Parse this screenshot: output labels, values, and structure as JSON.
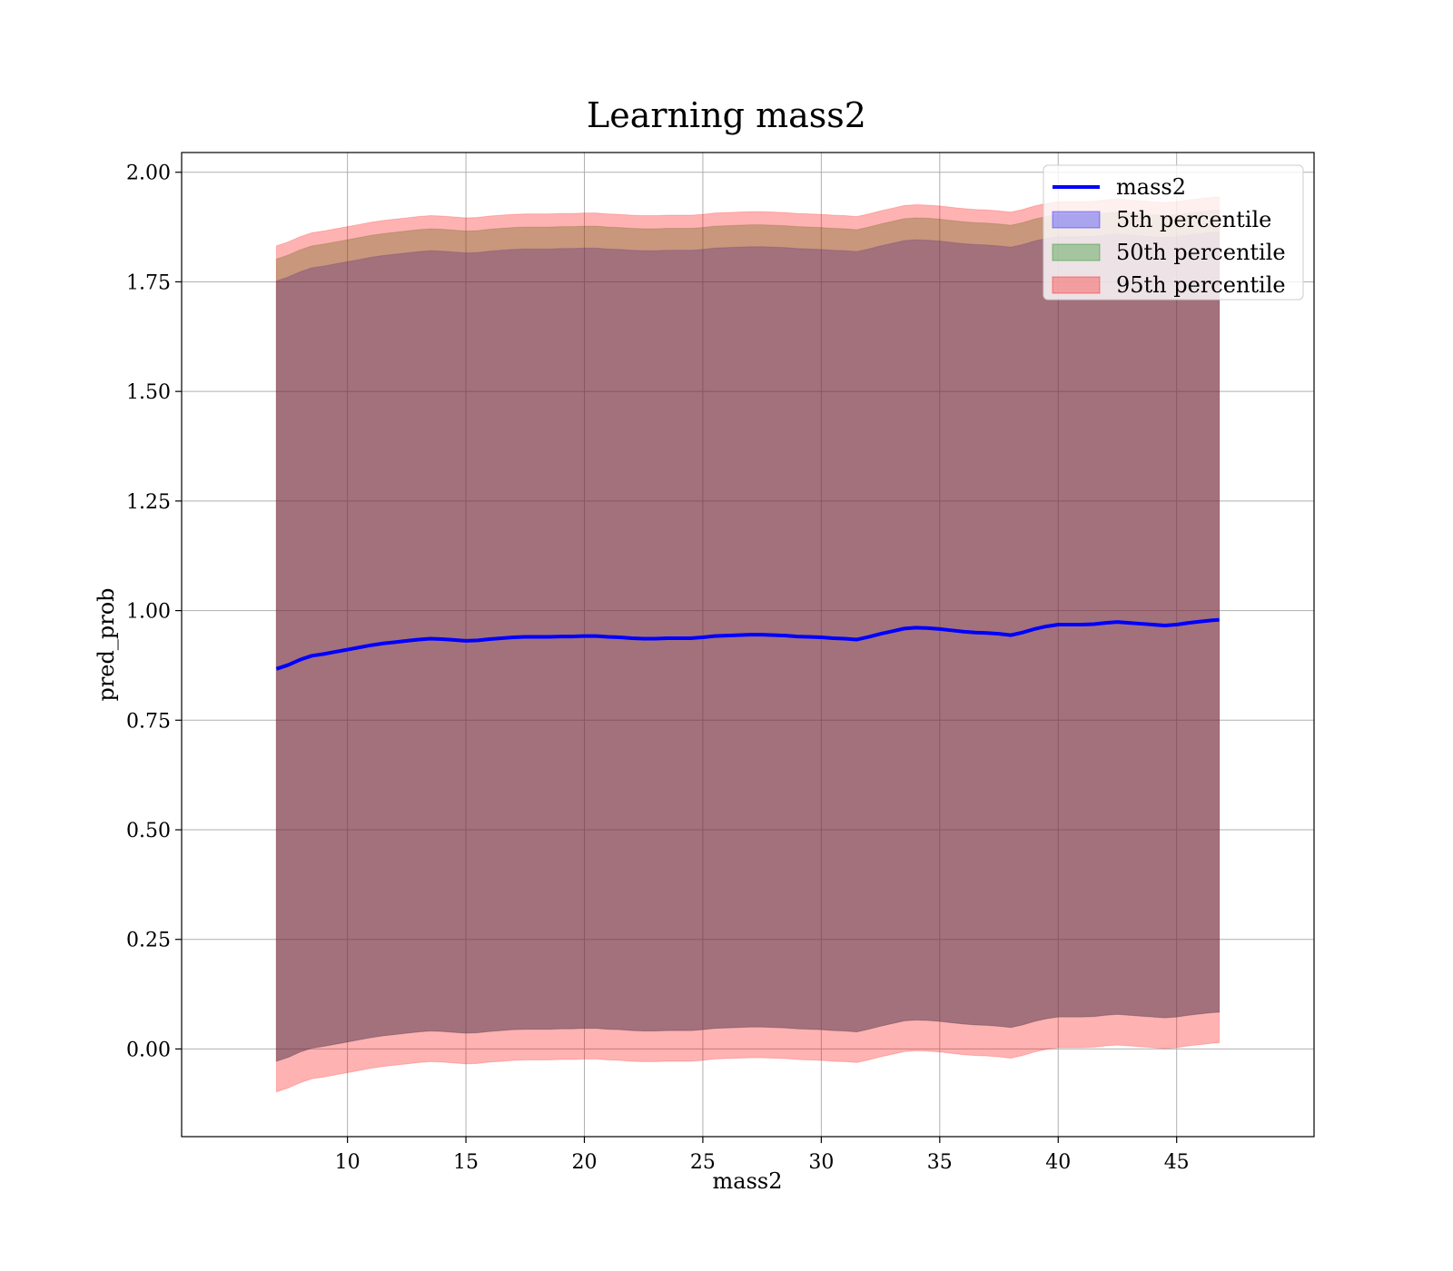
{
  "chart_data": {
    "type": "area",
    "title": "Learning mass2",
    "xlabel": "mass2",
    "ylabel": "pred_prob",
    "xlim": [
      3,
      50.8
    ],
    "ylim": [
      -0.2,
      2.045
    ],
    "xticks": [
      10,
      15,
      20,
      25,
      30,
      35,
      40,
      45
    ],
    "yticks": [
      0.0,
      0.25,
      0.5,
      0.75,
      1.0,
      1.25,
      1.5,
      1.75,
      2.0
    ],
    "ytick_labels": [
      "0.00",
      "0.25",
      "0.50",
      "0.75",
      "1.00",
      "1.25",
      "1.50",
      "1.75",
      "2.00"
    ],
    "grid": true,
    "legend_position": "top-right",
    "x": [
      7,
      7.5,
      8,
      8.5,
      9,
      9.5,
      10,
      10.5,
      11,
      11.5,
      12,
      12.5,
      13,
      13.5,
      14,
      14.5,
      15,
      15.5,
      16,
      16.5,
      17,
      17.5,
      18,
      18.5,
      19,
      19.5,
      20,
      20.5,
      21,
      21.5,
      22,
      22.5,
      23,
      23.5,
      24,
      24.5,
      25,
      25.5,
      26,
      26.5,
      27,
      27.5,
      28,
      28.5,
      29,
      29.5,
      30,
      30.5,
      31,
      31.5,
      32,
      32.5,
      33,
      33.5,
      34,
      34.5,
      35,
      35.5,
      36,
      36.5,
      37,
      37.5,
      38,
      38.5,
      39,
      39.5,
      40,
      40.5,
      41,
      41.5,
      42,
      42.5,
      43,
      43.5,
      44,
      44.5,
      45,
      45.5,
      46,
      46.5,
      46.8
    ],
    "series": [
      {
        "name": "mass2",
        "kind": "line",
        "color": "#0000ff",
        "values": [
          0.867,
          0.876,
          0.888,
          0.897,
          0.901,
          0.906,
          0.911,
          0.916,
          0.921,
          0.925,
          0.928,
          0.931,
          0.934,
          0.936,
          0.935,
          0.933,
          0.931,
          0.932,
          0.935,
          0.937,
          0.939,
          0.94,
          0.94,
          0.94,
          0.941,
          0.941,
          0.942,
          0.942,
          0.94,
          0.939,
          0.937,
          0.936,
          0.936,
          0.937,
          0.937,
          0.937,
          0.939,
          0.942,
          0.943,
          0.944,
          0.945,
          0.945,
          0.944,
          0.943,
          0.941,
          0.94,
          0.939,
          0.937,
          0.936,
          0.934,
          0.94,
          0.947,
          0.953,
          0.959,
          0.961,
          0.96,
          0.958,
          0.955,
          0.952,
          0.95,
          0.949,
          0.947,
          0.944,
          0.95,
          0.958,
          0.964,
          0.968,
          0.968,
          0.968,
          0.969,
          0.972,
          0.974,
          0.972,
          0.97,
          0.968,
          0.966,
          0.968,
          0.972,
          0.975,
          0.978,
          0.979
        ]
      },
      {
        "name": "5th percentile",
        "kind": "band",
        "color": "#0000ff",
        "opacity": 0.3,
        "lower_offset": -0.895,
        "upper_offset": 0.885
      },
      {
        "name": "50th percentile",
        "kind": "band",
        "color": "#008000",
        "opacity": 0.3,
        "lower_offset": -0.895,
        "upper_offset": 0.935
      },
      {
        "name": "95th percentile",
        "kind": "band",
        "color": "#ff0000",
        "opacity": 0.3,
        "lower_offset": -0.965,
        "upper_offset": 0.965
      }
    ]
  }
}
